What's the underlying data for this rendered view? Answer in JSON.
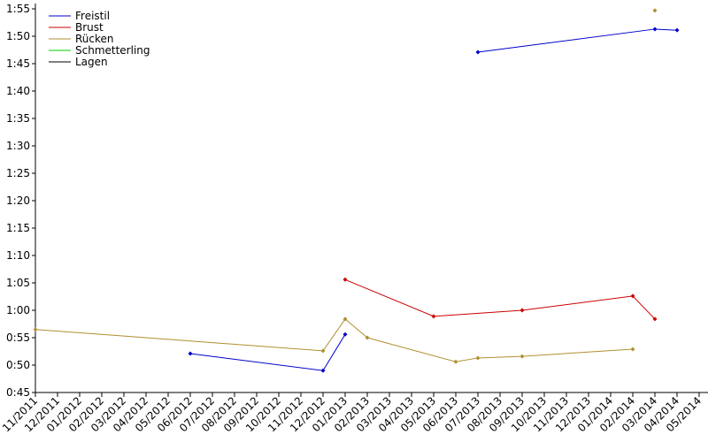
{
  "chart_data": {
    "type": "line",
    "categories": [
      "11/2011",
      "12/2011",
      "01/2012",
      "02/2012",
      "03/2012",
      "04/2012",
      "05/2012",
      "06/2012",
      "07/2012",
      "08/2012",
      "09/2012",
      "10/2012",
      "11/2012",
      "12/2012",
      "01/2013",
      "02/2013",
      "03/2013",
      "04/2013",
      "05/2013",
      "06/2013",
      "07/2013",
      "08/2013",
      "09/2013",
      "10/2013",
      "11/2013",
      "12/2013",
      "01/2014",
      "02/2014",
      "03/2014",
      "04/2014",
      "05/2014"
    ],
    "series": [
      {
        "name": "Freistil",
        "color": "#0000cc",
        "x": [
          "06/2012",
          "12/2012",
          "01/2013",
          null,
          "07/2013",
          "03/2014",
          "04/2014"
        ],
        "values": [
          52.1,
          49.0,
          55.6,
          null,
          107.1,
          111.3,
          111.1
        ]
      },
      {
        "name": "Brust",
        "color": "#cc0000",
        "x": [
          "01/2013",
          "05/2013",
          "09/2013",
          "02/2014",
          "03/2014"
        ],
        "values": [
          65.6,
          58.9,
          60.0,
          62.6,
          58.4
        ]
      },
      {
        "name": "Rücken",
        "color": "#b09030",
        "x": [
          "11/2011",
          "12/2012",
          "01/2013",
          "02/2013",
          "06/2013",
          "07/2013",
          "09/2013",
          "02/2014",
          null,
          "03/2014"
        ],
        "values": [
          56.5,
          52.6,
          58.4,
          55.0,
          50.6,
          51.3,
          51.6,
          52.9,
          null,
          114.7
        ]
      },
      {
        "name": "Schmetterling",
        "color": "#00cc00",
        "x": [],
        "values": []
      },
      {
        "name": "Lagen",
        "color": "#000000",
        "x": [],
        "values": []
      }
    ],
    "ylim": [
      45,
      115
    ],
    "yticks": [
      {
        "value": 45,
        "label": "0:45"
      },
      {
        "value": 50,
        "label": "0:50"
      },
      {
        "value": 55,
        "label": "0:55"
      },
      {
        "value": 60,
        "label": "1:00"
      },
      {
        "value": 65,
        "label": "1:05"
      },
      {
        "value": 70,
        "label": "1:10"
      },
      {
        "value": 75,
        "label": "1:15"
      },
      {
        "value": 80,
        "label": "1:20"
      },
      {
        "value": 85,
        "label": "1:25"
      },
      {
        "value": 90,
        "label": "1:30"
      },
      {
        "value": 95,
        "label": "1:35"
      },
      {
        "value": 100,
        "label": "1:40"
      },
      {
        "value": 105,
        "label": "1:45"
      },
      {
        "value": 110,
        "label": "1:50"
      },
      {
        "value": 115,
        "label": "1:55"
      }
    ],
    "legend": "upper left",
    "grid": false
  }
}
